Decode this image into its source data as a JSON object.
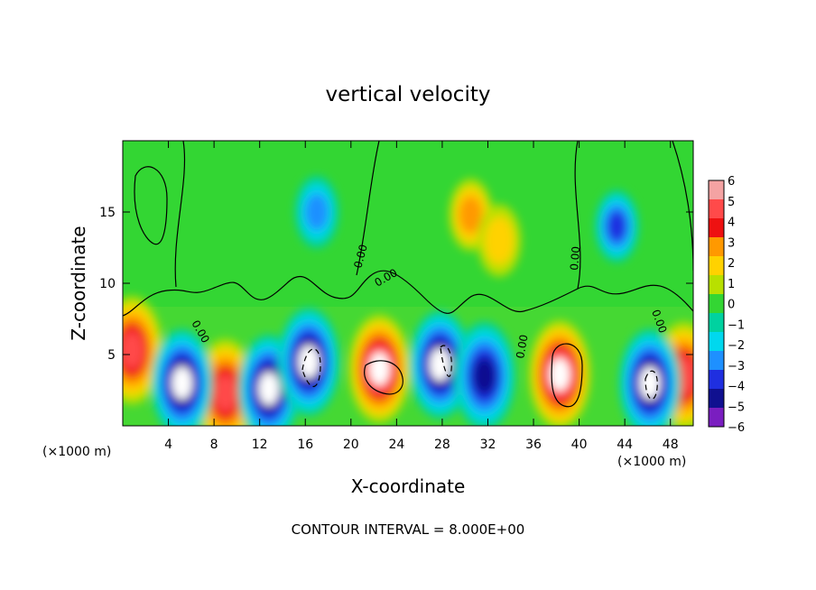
{
  "chart_data": {
    "type": "heatmap",
    "title": "vertical velocity",
    "xlabel": "X-coordinate",
    "ylabel": "Z-coordinate",
    "x_unit_left": "(×1000 m)",
    "x_unit_right": "(×1000 m)",
    "footer": "CONTOUR INTERVAL = 8.000E+00",
    "xlim": [
      0,
      50
    ],
    "ylim": [
      0,
      20
    ],
    "x_ticks": [
      4,
      8,
      12,
      16,
      20,
      24,
      28,
      32,
      36,
      40,
      44,
      48
    ],
    "y_ticks": [
      5,
      10,
      15
    ],
    "contour_label": "0.00",
    "colorbar": {
      "labels": [
        "6",
        "5",
        "4",
        "3",
        "2",
        "1",
        "0",
        "−1",
        "−2",
        "−3",
        "−4",
        "−5",
        "−6"
      ],
      "colors": [
        "#f4a3a3",
        "#ff4a4a",
        "#ee1111",
        "#ff9900",
        "#ffd200",
        "#b8e000",
        "#33d633",
        "#00d2a0",
        "#00d8ee",
        "#1e90ff",
        "#1f2fe0",
        "#101090",
        "#7a1ec0"
      ]
    },
    "updrafts": [
      {
        "x": 0.8,
        "z": 5.3,
        "strength": 5
      },
      {
        "x": 9.0,
        "z": 2.3,
        "strength": 5
      },
      {
        "x": 22.5,
        "z": 4.0,
        "strength": 6
      },
      {
        "x": 38.3,
        "z": 3.6,
        "strength": 6
      },
      {
        "x": 49.2,
        "z": 3.5,
        "strength": 5
      },
      {
        "x": 30.5,
        "z": 14.8,
        "strength": 2.5
      },
      {
        "x": 33.0,
        "z": 13.0,
        "strength": 1.5
      }
    ],
    "downdrafts": [
      {
        "x": 5.2,
        "z": 3.0,
        "strength": 6
      },
      {
        "x": 12.8,
        "z": 2.6,
        "strength": 6
      },
      {
        "x": 16.3,
        "z": 4.5,
        "strength": 6
      },
      {
        "x": 27.8,
        "z": 4.3,
        "strength": 5.5
      },
      {
        "x": 31.7,
        "z": 3.5,
        "strength": 5
      },
      {
        "x": 46.2,
        "z": 3.0,
        "strength": 6
      },
      {
        "x": 17.0,
        "z": 15.0,
        "strength": 3
      },
      {
        "x": 43.3,
        "z": 14.0,
        "strength": 3.5
      }
    ]
  }
}
